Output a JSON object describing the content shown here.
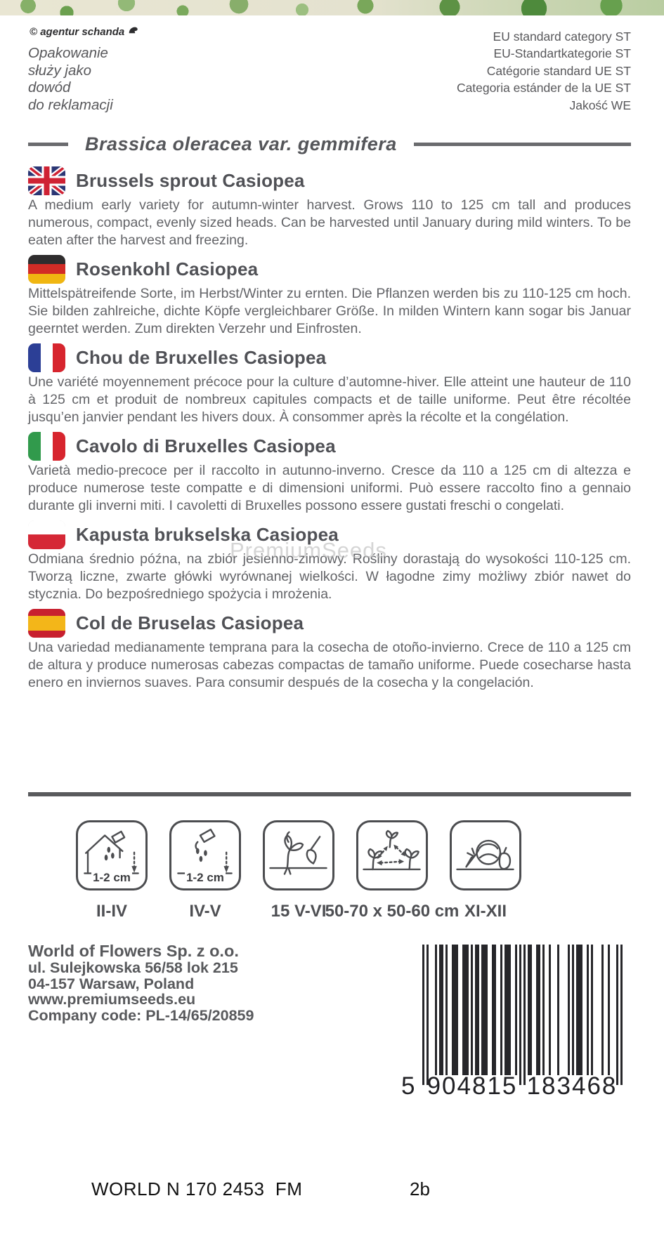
{
  "credit": "© agentur schanda",
  "claim": [
    "Opakowanie",
    "służy jako",
    "dowód",
    "do reklamacji"
  ],
  "eu": [
    "EU standard category ST",
    "EU-Standartkategorie ST",
    "Catégorie standard UE ST",
    "Categoria estánder de la UE ST",
    "Jakość WE"
  ],
  "botanical_title": "Brassica oleracea var. gemmifera",
  "sections": [
    {
      "language": "English",
      "flag": "united-kingdom",
      "title": "Brussels sprout Casiopea",
      "body": "A medium early variety for autumn-winter harvest. Grows 110 to 125 cm tall and produces numerous, compact, evenly sized heads. Can be harvested until January during mild winters. To be eaten after the harvest and freezing."
    },
    {
      "language": "German",
      "flag": "germany",
      "title": "Rosenkohl Casiopea",
      "body": "Mittelspätreifende Sorte, im Herbst/Winter zu ernten. Die Pflanzen werden bis zu 110-125 cm hoch. Sie bilden zahlreiche, dichte Köpfe vergleichbarer Größe. In milden Wintern kann sogar bis Januar geerntet werden. Zum direkten Verzehr und Einfrosten."
    },
    {
      "language": "French",
      "flag": "france",
      "title": "Chou de Bruxelles Casiopea",
      "body": "Une variété moyennement précoce pour la culture d’automne-hiver. Elle atteint une hauteur de 110 à 125 cm et produit de nombreux capitules compacts et de taille uniforme. Peut être récoltée jusqu’en janvier pendant les hivers doux. À consommer après la récolte et la congélation."
    },
    {
      "language": "Italian",
      "flag": "italy",
      "title": "Cavolo di Bruxelles Casiopea",
      "body": "Varietà medio-precoce per il raccolto in autunno-inverno. Cresce da 110 a 125 cm di altezza e produce numerose teste compatte e di dimensioni uniformi. Può essere raccolto fino a gennaio durante gli inverni miti. I cavoletti di Bruxelles possono essere gustati freschi o congelati."
    },
    {
      "language": "Polish",
      "flag": "poland",
      "title": "Kapusta brukselska Casiopea",
      "body": "Odmiana średnio późna, na zbiór jesienno-zimowy. Rośliny dorastają do wysokości 110-125 cm. Tworzą liczne, zwarte główki wyrównanej wielkości. W łagodne zimy możliwy zbiór nawet do stycznia. Do bezpośredniego spożycia i mrożenia."
    },
    {
      "language": "Spanish",
      "flag": "spain",
      "title": "Col de Bruselas Casiopea",
      "body": "Una variedad medianamente temprana para la cosecha de otoño-invierno. Crece de 110 a 125 cm de altura y produce numerosas cabezas compactas de tamaño uniforme. Puede cosecharse hasta enero en inviernos suaves. Para consumir después de la cosecha y la congelación."
    }
  ],
  "watermark": "PremiumSeeds",
  "icons": [
    {
      "name": "indoor-sowing-icon",
      "inner_label": "1-2 cm",
      "label": "II-IV"
    },
    {
      "name": "outdoor-sowing-icon",
      "inner_label": "1-2 cm",
      "label": "IV-V"
    },
    {
      "name": "transplanting-icon",
      "inner_label": "",
      "label": "15 V-VI"
    },
    {
      "name": "plant-spacing-icon",
      "inner_label": "",
      "label": "50-70 x 50-60 cm"
    },
    {
      "name": "harvest-icon",
      "inner_label": "",
      "label": "XI-XII"
    }
  ],
  "company": [
    "World of Flowers Sp. z o.o.",
    "ul. Sulejkowska 56/58 lok 215",
    "04-157 Warsaw, Poland",
    "www.premiumseeds.eu",
    "Company code: PL-14/65/20859"
  ],
  "barcode": {
    "number": "5904815183468",
    "left_digit": "5",
    "groups": [
      "904815",
      "183468"
    ],
    "pattern": "10100010110100111001110101101110011001011100101010110011010010001000010101110010100001001000101"
  },
  "footer": {
    "left": "WORLD N 170 2453  FM",
    "right": "2b"
  },
  "colors": {
    "heading_gray": "#505156",
    "body_gray": "#636468",
    "rule_gray": "#595a5d",
    "footer_text": "#111111"
  }
}
